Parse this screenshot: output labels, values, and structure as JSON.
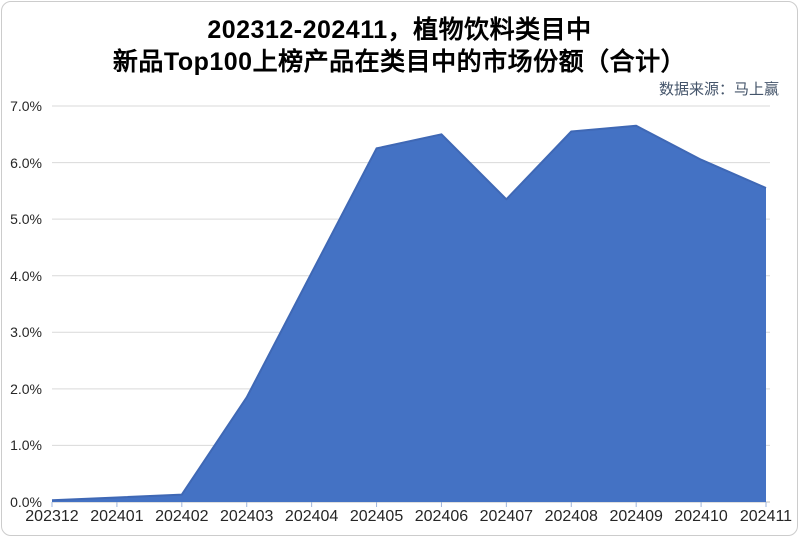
{
  "header": {
    "title_line1": "202312-202411，植物饮料类目中",
    "title_line2": "新品Top100上榜产品在类目中的市场份额（合计）",
    "source_note": "数据来源：马上赢"
  },
  "colors": {
    "area_fill": "#4472C4",
    "area_outline": "#3F68B5",
    "gridline": "#D9D9D9",
    "axis_line": "#BFBFBF",
    "tick_mark": "#9FB5DC",
    "axis_label_text": "#262626",
    "title_text": "#000000",
    "source_text": "#44546A"
  },
  "chart_data": {
    "type": "area",
    "title": "202312-202411，植物饮料类目中 新品Top100上榜产品在类目中的市场份额（合计）",
    "source": "数据来源：马上赢",
    "categories": [
      "202312",
      "202401",
      "202402",
      "202403",
      "202404",
      "202405",
      "202406",
      "202407",
      "202408",
      "202409",
      "202410",
      "202411"
    ],
    "values": [
      0.03,
      0.08,
      0.13,
      1.85,
      4.05,
      6.25,
      6.5,
      5.35,
      6.55,
      6.65,
      6.05,
      5.55
    ],
    "unit": "%",
    "xlabel": "",
    "ylabel": "",
    "ylim": [
      0,
      7
    ],
    "ytick_step": 1.0,
    "ytick_labels": [
      "0.0%",
      "1.0%",
      "2.0%",
      "3.0%",
      "4.0%",
      "5.0%",
      "6.0%",
      "7.0%"
    ],
    "grid": true,
    "legend": false
  }
}
